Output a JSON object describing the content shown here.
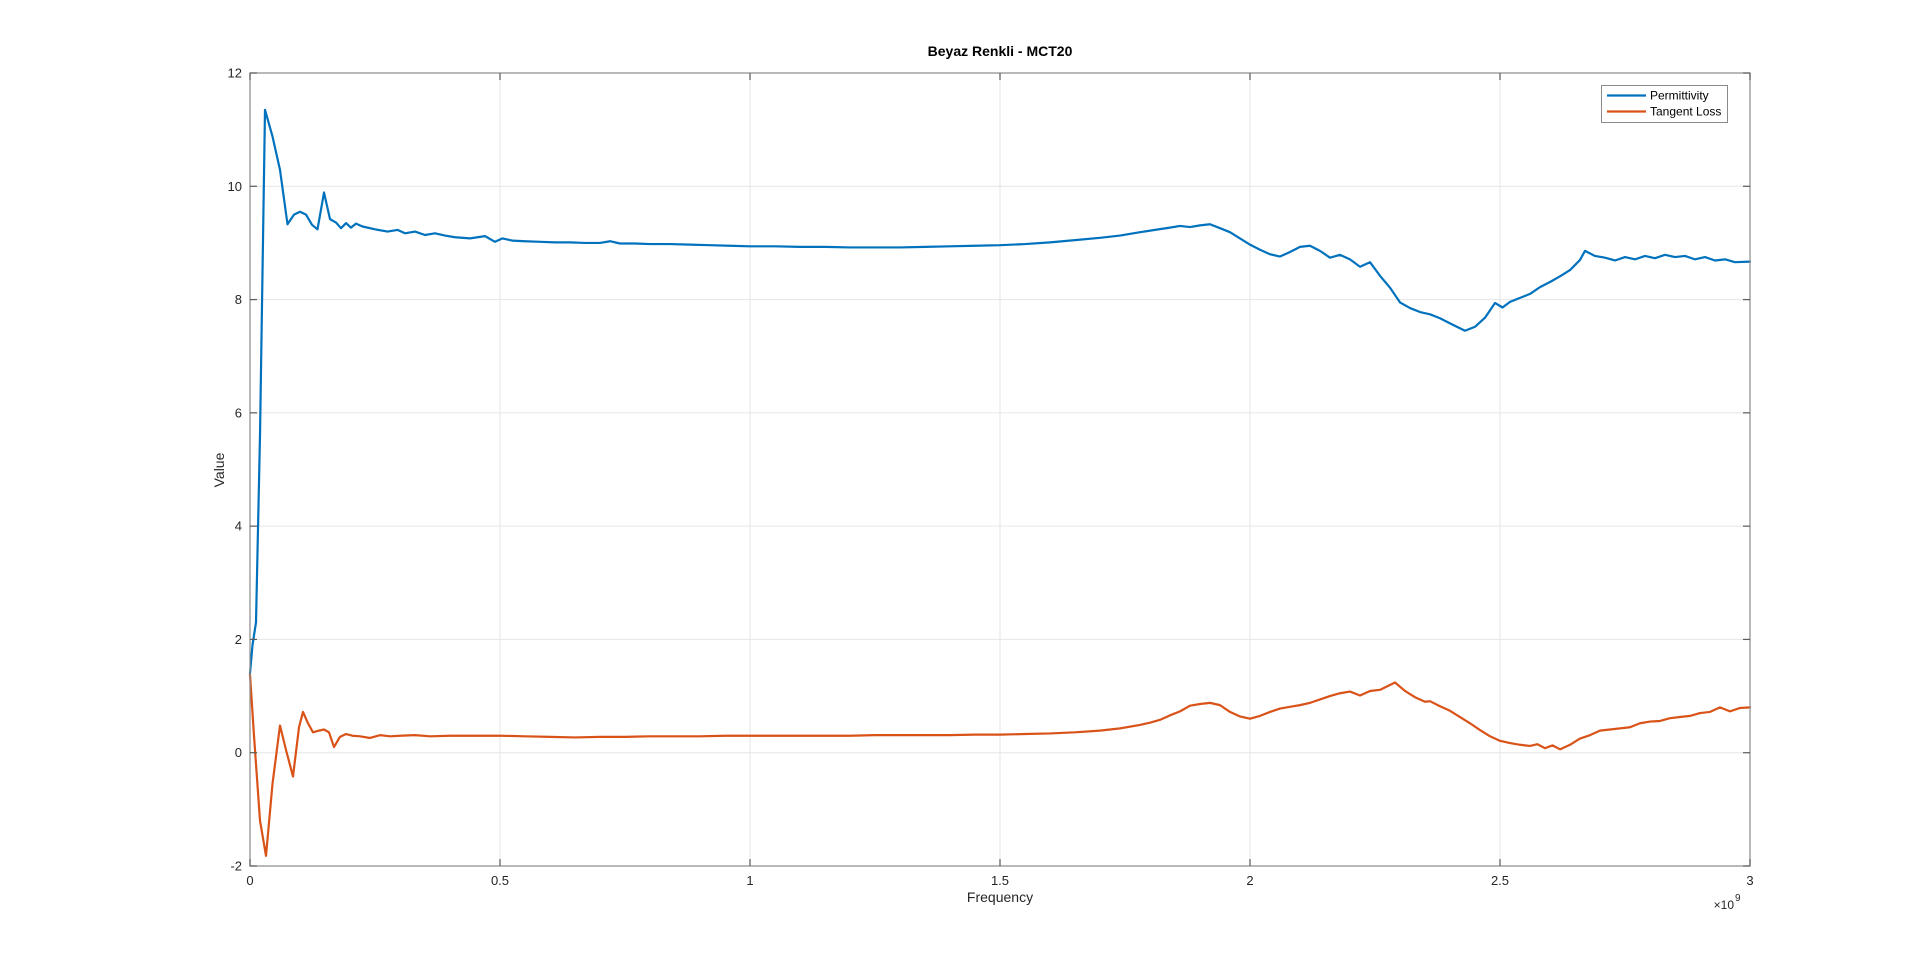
{
  "window": {
    "background_color": "#ffffff"
  },
  "chart_data": {
    "type": "line",
    "title": "Beyaz Renkli - MCT20",
    "xlabel": "Frequency",
    "ylabel": "Value",
    "x_axis_multiplier": {
      "base": "×10",
      "exponent": "9"
    },
    "x_unit_scale": "1e9",
    "xlim": [
      0,
      3
    ],
    "ylim": [
      -2,
      12
    ],
    "grid": true,
    "legend_position": "top-right",
    "x_ticks": [
      {
        "value": 0,
        "label": "0"
      },
      {
        "value": 0.5,
        "label": "0.5"
      },
      {
        "value": 1,
        "label": "1"
      },
      {
        "value": 1.5,
        "label": "1.5"
      },
      {
        "value": 2,
        "label": "2"
      },
      {
        "value": 2.5,
        "label": "2.5"
      },
      {
        "value": 3,
        "label": "3"
      }
    ],
    "y_ticks": [
      {
        "value": -2,
        "label": "-2"
      },
      {
        "value": 0,
        "label": "0"
      },
      {
        "value": 2,
        "label": "2"
      },
      {
        "value": 4,
        "label": "4"
      },
      {
        "value": 6,
        "label": "6"
      },
      {
        "value": 8,
        "label": "8"
      },
      {
        "value": 10,
        "label": "10"
      },
      {
        "value": 12,
        "label": "12"
      }
    ],
    "colors": {
      "grid": "#e6e6e6",
      "axis_box": "#8a8a8a",
      "tick": "#5a5a5a"
    },
    "series": [
      {
        "name": "Permittivity",
        "color": "#0072BD",
        "points": [
          [
            0,
            1.4
          ],
          [
            0.005,
            1.9
          ],
          [
            0.012,
            2.3
          ],
          [
            0.02,
            5.6
          ],
          [
            0.03,
            11.35
          ],
          [
            0.045,
            10.88
          ],
          [
            0.06,
            10.29
          ],
          [
            0.075,
            9.33
          ],
          [
            0.088,
            9.5
          ],
          [
            0.1,
            9.55
          ],
          [
            0.112,
            9.5
          ],
          [
            0.124,
            9.32
          ],
          [
            0.135,
            9.24
          ],
          [
            0.148,
            9.89
          ],
          [
            0.16,
            9.42
          ],
          [
            0.172,
            9.36
          ],
          [
            0.182,
            9.26
          ],
          [
            0.192,
            9.35
          ],
          [
            0.202,
            9.27
          ],
          [
            0.212,
            9.34
          ],
          [
            0.225,
            9.29
          ],
          [
            0.25,
            9.24
          ],
          [
            0.275,
            9.2
          ],
          [
            0.295,
            9.23
          ],
          [
            0.31,
            9.17
          ],
          [
            0.33,
            9.2
          ],
          [
            0.35,
            9.14
          ],
          [
            0.37,
            9.17
          ],
          [
            0.39,
            9.13
          ],
          [
            0.41,
            9.1
          ],
          [
            0.44,
            9.08
          ],
          [
            0.47,
            9.12
          ],
          [
            0.49,
            9.02
          ],
          [
            0.505,
            9.08
          ],
          [
            0.525,
            9.04
          ],
          [
            0.55,
            9.03
          ],
          [
            0.58,
            9.02
          ],
          [
            0.61,
            9.01
          ],
          [
            0.64,
            9.01
          ],
          [
            0.67,
            9.0
          ],
          [
            0.7,
            9.0
          ],
          [
            0.72,
            9.03
          ],
          [
            0.74,
            8.99
          ],
          [
            0.77,
            8.99
          ],
          [
            0.8,
            8.98
          ],
          [
            0.84,
            8.98
          ],
          [
            0.88,
            8.97
          ],
          [
            0.92,
            8.96
          ],
          [
            0.96,
            8.95
          ],
          [
            1.0,
            8.94
          ],
          [
            1.05,
            8.94
          ],
          [
            1.1,
            8.93
          ],
          [
            1.15,
            8.93
          ],
          [
            1.2,
            8.92
          ],
          [
            1.25,
            8.92
          ],
          [
            1.3,
            8.92
          ],
          [
            1.35,
            8.93
          ],
          [
            1.4,
            8.94
          ],
          [
            1.45,
            8.95
          ],
          [
            1.5,
            8.96
          ],
          [
            1.55,
            8.98
          ],
          [
            1.6,
            9.01
          ],
          [
            1.65,
            9.05
          ],
          [
            1.7,
            9.09
          ],
          [
            1.74,
            9.13
          ],
          [
            1.78,
            9.19
          ],
          [
            1.81,
            9.23
          ],
          [
            1.84,
            9.27
          ],
          [
            1.86,
            9.3
          ],
          [
            1.88,
            9.28
          ],
          [
            1.9,
            9.31
          ],
          [
            1.92,
            9.33
          ],
          [
            1.94,
            9.26
          ],
          [
            1.96,
            9.19
          ],
          [
            1.98,
            9.08
          ],
          [
            2.0,
            8.97
          ],
          [
            2.02,
            8.88
          ],
          [
            2.04,
            8.8
          ],
          [
            2.06,
            8.76
          ],
          [
            2.08,
            8.84
          ],
          [
            2.1,
            8.93
          ],
          [
            2.12,
            8.95
          ],
          [
            2.14,
            8.86
          ],
          [
            2.16,
            8.74
          ],
          [
            2.18,
            8.79
          ],
          [
            2.2,
            8.71
          ],
          [
            2.22,
            8.58
          ],
          [
            2.24,
            8.66
          ],
          [
            2.26,
            8.42
          ],
          [
            2.28,
            8.21
          ],
          [
            2.3,
            7.95
          ],
          [
            2.32,
            7.85
          ],
          [
            2.34,
            7.78
          ],
          [
            2.36,
            7.74
          ],
          [
            2.38,
            7.67
          ],
          [
            2.4,
            7.58
          ],
          [
            2.43,
            7.45
          ],
          [
            2.45,
            7.52
          ],
          [
            2.47,
            7.68
          ],
          [
            2.49,
            7.94
          ],
          [
            2.505,
            7.86
          ],
          [
            2.52,
            7.96
          ],
          [
            2.54,
            8.03
          ],
          [
            2.56,
            8.1
          ],
          [
            2.58,
            8.22
          ],
          [
            2.6,
            8.31
          ],
          [
            2.62,
            8.41
          ],
          [
            2.64,
            8.52
          ],
          [
            2.66,
            8.7
          ],
          [
            2.67,
            8.86
          ],
          [
            2.69,
            8.77
          ],
          [
            2.71,
            8.74
          ],
          [
            2.73,
            8.69
          ],
          [
            2.75,
            8.75
          ],
          [
            2.77,
            8.71
          ],
          [
            2.79,
            8.77
          ],
          [
            2.81,
            8.73
          ],
          [
            2.83,
            8.79
          ],
          [
            2.85,
            8.75
          ],
          [
            2.87,
            8.77
          ],
          [
            2.89,
            8.71
          ],
          [
            2.91,
            8.75
          ],
          [
            2.93,
            8.69
          ],
          [
            2.95,
            8.71
          ],
          [
            2.97,
            8.66
          ],
          [
            3.0,
            8.67
          ]
        ]
      },
      {
        "name": "Tangent Loss",
        "color": "#D95319",
        "points": [
          [
            0,
            1.38
          ],
          [
            0.008,
            0.3
          ],
          [
            0.02,
            -1.2
          ],
          [
            0.032,
            -1.82
          ],
          [
            0.045,
            -0.55
          ],
          [
            0.06,
            0.48
          ],
          [
            0.072,
            0.05
          ],
          [
            0.086,
            -0.42
          ],
          [
            0.098,
            0.45
          ],
          [
            0.106,
            0.72
          ],
          [
            0.116,
            0.52
          ],
          [
            0.126,
            0.36
          ],
          [
            0.138,
            0.39
          ],
          [
            0.148,
            0.41
          ],
          [
            0.158,
            0.36
          ],
          [
            0.168,
            0.1
          ],
          [
            0.18,
            0.28
          ],
          [
            0.192,
            0.33
          ],
          [
            0.205,
            0.3
          ],
          [
            0.22,
            0.29
          ],
          [
            0.24,
            0.26
          ],
          [
            0.26,
            0.31
          ],
          [
            0.28,
            0.29
          ],
          [
            0.3,
            0.3
          ],
          [
            0.33,
            0.31
          ],
          [
            0.36,
            0.29
          ],
          [
            0.4,
            0.3
          ],
          [
            0.45,
            0.3
          ],
          [
            0.5,
            0.3
          ],
          [
            0.55,
            0.29
          ],
          [
            0.6,
            0.28
          ],
          [
            0.65,
            0.27
          ],
          [
            0.7,
            0.28
          ],
          [
            0.75,
            0.28
          ],
          [
            0.8,
            0.29
          ],
          [
            0.85,
            0.29
          ],
          [
            0.9,
            0.29
          ],
          [
            0.95,
            0.3
          ],
          [
            1.0,
            0.3
          ],
          [
            1.05,
            0.3
          ],
          [
            1.1,
            0.3
          ],
          [
            1.15,
            0.3
          ],
          [
            1.2,
            0.3
          ],
          [
            1.25,
            0.31
          ],
          [
            1.3,
            0.31
          ],
          [
            1.35,
            0.31
          ],
          [
            1.4,
            0.31
          ],
          [
            1.45,
            0.32
          ],
          [
            1.5,
            0.32
          ],
          [
            1.55,
            0.33
          ],
          [
            1.6,
            0.34
          ],
          [
            1.65,
            0.36
          ],
          [
            1.7,
            0.39
          ],
          [
            1.74,
            0.43
          ],
          [
            1.78,
            0.49
          ],
          [
            1.8,
            0.53
          ],
          [
            1.82,
            0.58
          ],
          [
            1.84,
            0.66
          ],
          [
            1.86,
            0.73
          ],
          [
            1.88,
            0.83
          ],
          [
            1.9,
            0.86
          ],
          [
            1.92,
            0.88
          ],
          [
            1.94,
            0.84
          ],
          [
            1.96,
            0.72
          ],
          [
            1.98,
            0.64
          ],
          [
            2.0,
            0.6
          ],
          [
            2.02,
            0.65
          ],
          [
            2.04,
            0.72
          ],
          [
            2.06,
            0.78
          ],
          [
            2.08,
            0.81
          ],
          [
            2.1,
            0.84
          ],
          [
            2.12,
            0.88
          ],
          [
            2.14,
            0.94
          ],
          [
            2.16,
            1.0
          ],
          [
            2.18,
            1.05
          ],
          [
            2.2,
            1.08
          ],
          [
            2.22,
            1.01
          ],
          [
            2.24,
            1.09
          ],
          [
            2.26,
            1.11
          ],
          [
            2.29,
            1.24
          ],
          [
            2.31,
            1.09
          ],
          [
            2.33,
            0.98
          ],
          [
            2.35,
            0.9
          ],
          [
            2.36,
            0.91
          ],
          [
            2.38,
            0.82
          ],
          [
            2.4,
            0.74
          ],
          [
            2.42,
            0.63
          ],
          [
            2.44,
            0.52
          ],
          [
            2.46,
            0.4
          ],
          [
            2.48,
            0.29
          ],
          [
            2.5,
            0.21
          ],
          [
            2.52,
            0.17
          ],
          [
            2.54,
            0.14
          ],
          [
            2.56,
            0.12
          ],
          [
            2.575,
            0.15
          ],
          [
            2.59,
            0.08
          ],
          [
            2.605,
            0.13
          ],
          [
            2.62,
            0.06
          ],
          [
            2.64,
            0.14
          ],
          [
            2.66,
            0.25
          ],
          [
            2.68,
            0.31
          ],
          [
            2.7,
            0.39
          ],
          [
            2.72,
            0.41
          ],
          [
            2.74,
            0.43
          ],
          [
            2.76,
            0.45
          ],
          [
            2.78,
            0.52
          ],
          [
            2.8,
            0.55
          ],
          [
            2.82,
            0.56
          ],
          [
            2.84,
            0.61
          ],
          [
            2.86,
            0.63
          ],
          [
            2.88,
            0.65
          ],
          [
            2.9,
            0.7
          ],
          [
            2.92,
            0.72
          ],
          [
            2.94,
            0.8
          ],
          [
            2.96,
            0.73
          ],
          [
            2.98,
            0.79
          ],
          [
            3.0,
            0.8
          ]
        ]
      }
    ]
  }
}
